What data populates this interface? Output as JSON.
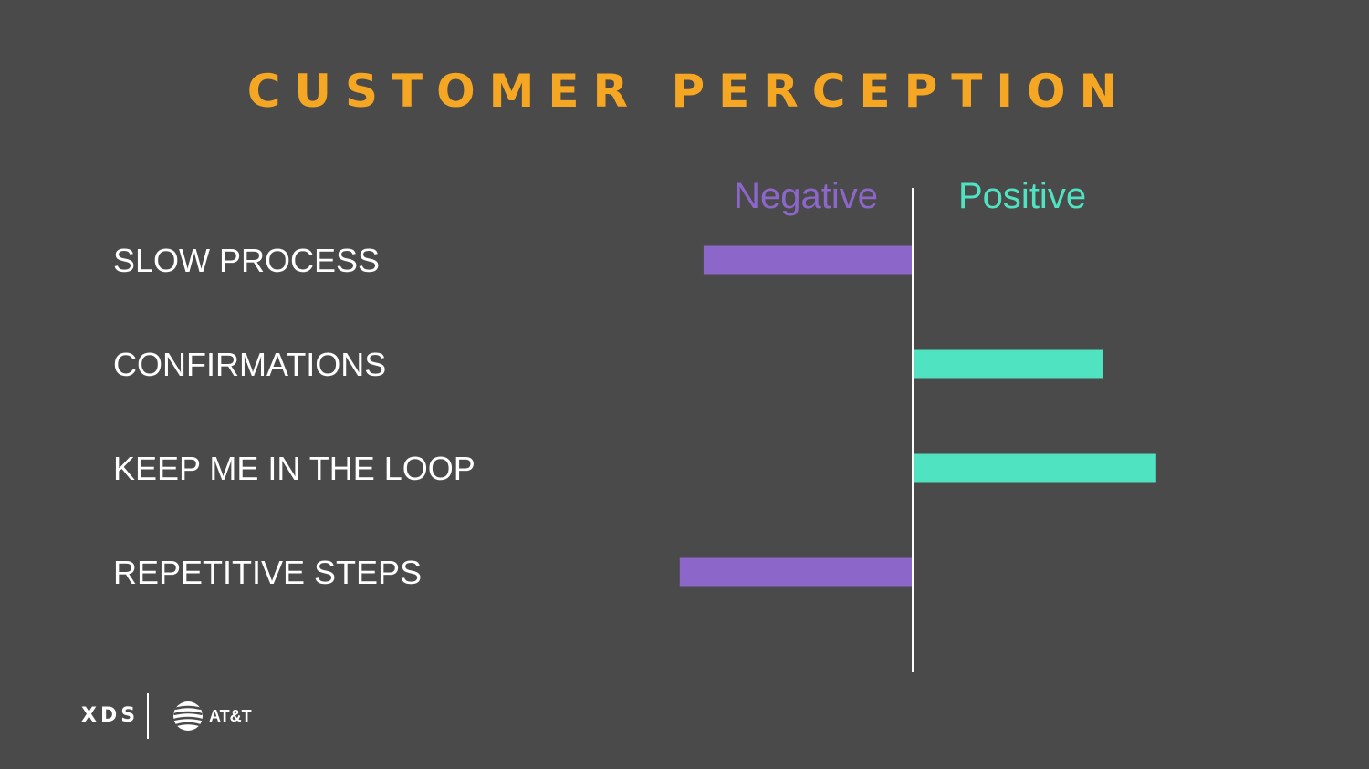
{
  "slide": {
    "title": "CUSTOMER PERCEPTION"
  },
  "colors": {
    "background": "#4a4a4a",
    "title": "#f5a623",
    "negative": "#8c66c9",
    "positive": "#50e3c2",
    "axis": "#ffffff",
    "label": "#ffffff"
  },
  "chart_data": {
    "type": "bar",
    "orientation": "horizontal",
    "diverging": true,
    "axis_labels": {
      "negative": "Negative",
      "positive": "Positive"
    },
    "categories": [
      "SLOW PROCESS",
      "CONFIRMATIONS",
      "KEEP ME IN THE LOOP",
      "REPETITIVE STEPS"
    ],
    "values": [
      -0.79,
      0.72,
      0.92,
      -0.88
    ],
    "xlim": [
      -1,
      1
    ],
    "grid": false,
    "legend": "none"
  },
  "footer": {
    "brand": "XDS",
    "partner": "AT&T",
    "partner_icon": "att-globe-icon"
  }
}
